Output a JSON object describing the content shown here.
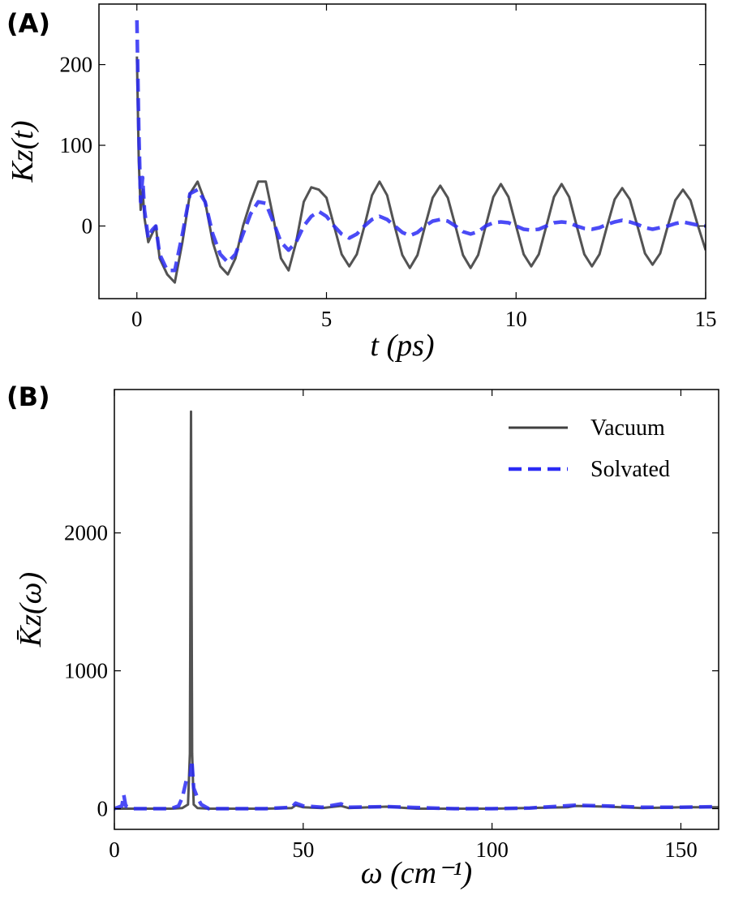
{
  "chart_data": [
    {
      "type": "line",
      "panel_label": "(A)",
      "xlabel": "t (ps)",
      "ylabel": "Kz(t)",
      "xlim": [
        -1,
        15
      ],
      "ylim": [
        -90,
        275
      ],
      "xticks": [
        0,
        5,
        10,
        15
      ],
      "yticks": [
        0,
        100,
        200
      ],
      "series": [
        {
          "name": "Vacuum",
          "color": "#404040",
          "dash": false,
          "x": [
            0,
            0.05,
            0.1,
            0.15,
            0.2,
            0.3,
            0.4,
            0.5,
            0.6,
            0.8,
            1.0,
            1.2,
            1.4,
            1.6,
            1.8,
            2.0,
            2.2,
            2.4,
            2.6,
            2.8,
            3.0,
            3.2,
            3.4,
            3.6,
            3.8,
            4.0,
            4.2,
            4.4,
            4.6,
            4.8,
            5.0,
            5.2,
            5.4,
            5.6,
            5.8,
            6.0,
            6.2,
            6.4,
            6.6,
            6.8,
            7.0,
            7.2,
            7.4,
            7.6,
            7.8,
            8.0,
            8.2,
            8.4,
            8.6,
            8.8,
            9.0,
            9.2,
            9.4,
            9.6,
            9.8,
            10.0,
            10.2,
            10.4,
            10.6,
            10.8,
            11.0,
            11.2,
            11.4,
            11.6,
            11.8,
            12.0,
            12.2,
            12.4,
            12.6,
            12.8,
            13.0,
            13.2,
            13.4,
            13.6,
            13.8,
            14.0,
            14.2,
            14.4,
            14.6,
            14.8,
            15.0
          ],
          "values": [
            210,
            80,
            20,
            45,
            10,
            -20,
            -10,
            0,
            -40,
            -60,
            -70,
            -20,
            40,
            55,
            30,
            -20,
            -50,
            -60,
            -40,
            0,
            30,
            55,
            55,
            10,
            -40,
            -55,
            -20,
            30,
            48,
            45,
            35,
            0,
            -35,
            -50,
            -35,
            0,
            38,
            55,
            38,
            0,
            -36,
            -52,
            -36,
            0,
            35,
            50,
            35,
            0,
            -36,
            -52,
            -36,
            0,
            36,
            52,
            36,
            0,
            -35,
            -50,
            -35,
            0,
            36,
            52,
            36,
            0,
            -35,
            -50,
            -35,
            0,
            33,
            47,
            33,
            0,
            -34,
            -48,
            -34,
            0,
            32,
            45,
            32,
            0,
            -30
          ]
        },
        {
          "name": "Solvated",
          "color": "#2b2bf5",
          "dash": true,
          "x": [
            0,
            0.05,
            0.1,
            0.15,
            0.2,
            0.3,
            0.4,
            0.5,
            0.6,
            0.8,
            1.0,
            1.2,
            1.4,
            1.6,
            1.8,
            2.0,
            2.2,
            2.4,
            2.6,
            2.8,
            3.0,
            3.2,
            3.4,
            3.6,
            3.8,
            4.0,
            4.2,
            4.4,
            4.6,
            4.8,
            5.0,
            5.2,
            5.4,
            5.6,
            5.8,
            6.0,
            6.2,
            6.4,
            6.6,
            6.8,
            7.0,
            7.2,
            7.4,
            7.6,
            7.8,
            8.0,
            8.2,
            8.4,
            8.6,
            8.8,
            9.0,
            9.2,
            9.4,
            9.6,
            9.8,
            10.0,
            10.2,
            10.4,
            10.6,
            10.8,
            11.0,
            11.2,
            11.4,
            11.6,
            11.8,
            12.0,
            12.2,
            12.4,
            12.6,
            12.8,
            13.0,
            13.2,
            13.4,
            13.6,
            13.8,
            14.0,
            14.2,
            14.4,
            14.6,
            14.8,
            15.0
          ],
          "values": [
            255,
            120,
            30,
            60,
            20,
            -15,
            -5,
            0,
            -35,
            -55,
            -55,
            -10,
            40,
            45,
            30,
            -10,
            -35,
            -45,
            -35,
            -10,
            15,
            30,
            28,
            5,
            -20,
            -30,
            -20,
            0,
            12,
            18,
            12,
            0,
            -10,
            -15,
            -10,
            0,
            8,
            12,
            8,
            0,
            -8,
            -12,
            -8,
            0,
            6,
            8,
            6,
            0,
            -7,
            -10,
            -7,
            0,
            4,
            5,
            4,
            0,
            -4,
            -5,
            -4,
            0,
            4,
            5,
            4,
            0,
            -3,
            -4,
            -2,
            2,
            5,
            7,
            5,
            2,
            -2,
            -4,
            -2,
            0,
            3,
            5,
            3,
            1,
            0
          ]
        }
      ]
    },
    {
      "type": "line",
      "panel_label": "(B)",
      "xlabel": "ω (cm⁻¹)",
      "ylabel": "K̄z(ω)",
      "xlim": [
        0,
        160
      ],
      "ylim": [
        -150,
        3040
      ],
      "xticks": [
        0,
        50,
        100,
        150
      ],
      "yticks": [
        0,
        1000,
        2000
      ],
      "legend": "upper right",
      "series": [
        {
          "name": "Vacuum",
          "color": "#404040",
          "dash": false,
          "x": [
            0,
            2,
            5,
            10,
            15,
            18,
            19.5,
            20,
            20.3,
            20.6,
            21,
            22,
            25,
            30,
            40,
            47,
            48,
            50,
            55,
            60,
            62,
            72,
            80,
            100,
            120,
            122,
            130,
            140,
            150,
            160
          ],
          "values": [
            0,
            0,
            0,
            0,
            0,
            5,
            30,
            400,
            2880,
            400,
            30,
            5,
            0,
            0,
            0,
            5,
            25,
            10,
            5,
            20,
            5,
            15,
            0,
            0,
            10,
            20,
            15,
            5,
            10,
            10
          ]
        },
        {
          "name": "Solvated",
          "color": "#2b2bf5",
          "dash": true,
          "x": [
            0,
            2,
            2.5,
            3,
            5,
            15,
            17,
            18,
            19,
            20,
            20.5,
            21,
            22,
            23,
            25,
            40,
            47,
            48,
            50,
            55,
            60,
            62,
            72,
            90,
            100,
            110,
            122,
            130,
            140,
            150,
            160
          ],
          "values": [
            0,
            20,
            100,
            20,
            0,
            0,
            20,
            80,
            200,
            220,
            350,
            150,
            80,
            30,
            0,
            0,
            10,
            40,
            20,
            10,
            35,
            10,
            15,
            0,
            0,
            5,
            25,
            20,
            10,
            10,
            15
          ]
        }
      ]
    }
  ]
}
